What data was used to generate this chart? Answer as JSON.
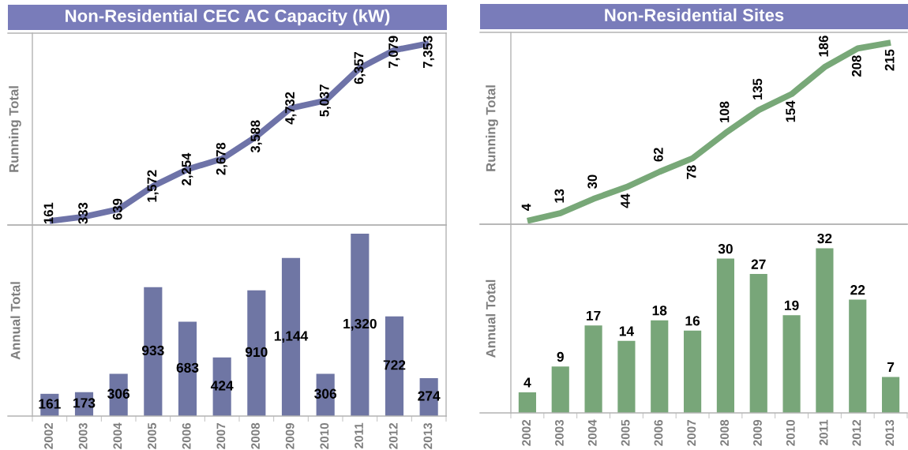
{
  "chart_data": [
    {
      "type": "line",
      "title": "Non-Residential CEC AC Capacity (kW)",
      "ylabel": "Running Total",
      "categories": [
        "2002",
        "2003",
        "2004",
        "2005",
        "2006",
        "2007",
        "2008",
        "2009",
        "2010",
        "2011",
        "2012",
        "2013"
      ],
      "values": [
        161,
        333,
        639,
        1572,
        2254,
        2678,
        3588,
        4732,
        5037,
        6357,
        7079,
        7353
      ],
      "color": "#6e73a8",
      "value_labels": [
        "161",
        "333",
        "639",
        "1,572",
        "2,254",
        "2,678",
        "3,588",
        "4,732",
        "5,037",
        "6,357",
        "7,079",
        "7,353"
      ],
      "tick_labels": false
    },
    {
      "type": "bar",
      "ylabel": "Annual Total",
      "categories": [
        "2002",
        "2003",
        "2004",
        "2005",
        "2006",
        "2007",
        "2008",
        "2009",
        "2010",
        "2011",
        "2012",
        "2013"
      ],
      "values": [
        161,
        173,
        306,
        933,
        683,
        424,
        910,
        1144,
        306,
        1320,
        722,
        274
      ],
      "color": "#6f76a4",
      "value_labels": [
        "161",
        "173",
        "306",
        "933",
        "683",
        "424",
        "910",
        "1,144",
        "306",
        "1,320",
        "722",
        "274"
      ],
      "tick_labels": "x"
    },
    {
      "type": "line",
      "title": "Non-Residential Sites",
      "ylabel": "Running Total",
      "categories": [
        "2002",
        "2003",
        "2004",
        "2005",
        "2006",
        "2007",
        "2008",
        "2009",
        "2010",
        "2011",
        "2012",
        "2013"
      ],
      "values": [
        4,
        13,
        30,
        44,
        62,
        78,
        108,
        135,
        154,
        186,
        208,
        215
      ],
      "color": "#78a878",
      "data_labels": true,
      "tick_labels": false
    },
    {
      "type": "bar",
      "ylabel": "Annual Total",
      "categories": [
        "2002",
        "2003",
        "2004",
        "2005",
        "2006",
        "2007",
        "2008",
        "2009",
        "2010",
        "2011",
        "2012",
        "2013"
      ],
      "values": [
        4,
        9,
        17,
        14,
        18,
        16,
        30,
        27,
        19,
        32,
        22,
        7
      ],
      "color": "#78a679",
      "data_labels": true,
      "tick_labels": "x"
    }
  ]
}
